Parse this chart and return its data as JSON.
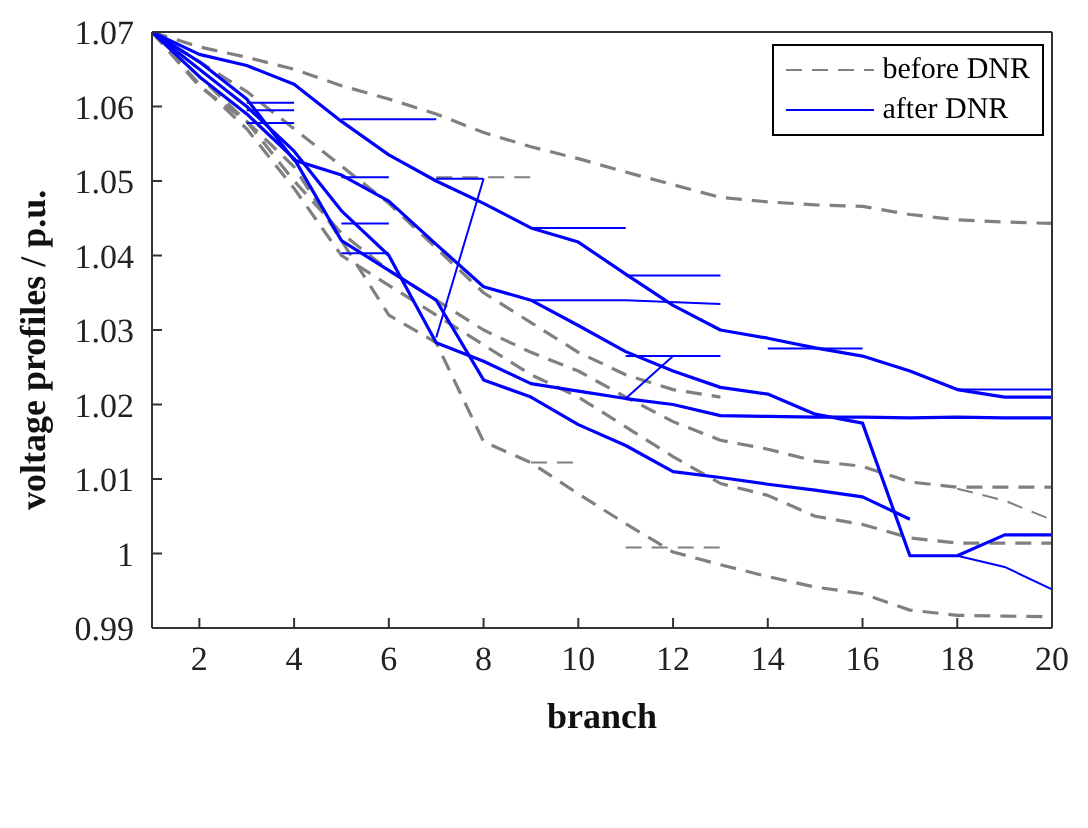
{
  "chart_data": {
    "type": "line",
    "xlabel": "branch",
    "ylabel": "voltage profiles / p.u.",
    "xlim": [
      1,
      20
    ],
    "xticks": [
      2,
      4,
      6,
      8,
      10,
      12,
      14,
      16,
      18,
      20
    ],
    "ylim": [
      0.99,
      1.07
    ],
    "yticks": [
      0.99,
      1,
      1.01,
      1.02,
      1.03,
      1.04,
      1.05,
      1.06,
      1.07
    ],
    "legend": "top right",
    "marker": "none",
    "series": [
      {
        "name": "before DNR",
        "color": "#808080",
        "line_style": "dashed",
        "x": [
          1,
          2,
          3,
          4,
          5,
          6,
          7,
          8,
          9,
          10,
          11,
          12,
          13,
          14,
          15,
          16,
          17,
          18,
          19,
          20
        ],
        "values": [
          1.07,
          1.068,
          1.0666,
          1.065,
          1.0628,
          1.061,
          1.059,
          1.0565,
          1.0546,
          1.053,
          1.0512,
          1.0495,
          1.0478,
          1.0472,
          1.0468,
          1.0466,
          1.0455,
          1.0448,
          1.0445,
          1.0443
        ]
      },
      {
        "color": "#808080",
        "line_style": "dashed",
        "x": [
          1,
          2,
          3,
          4,
          5,
          6,
          7,
          8,
          9,
          10,
          11,
          12,
          13,
          14,
          15,
          16,
          17,
          18,
          19,
          20
        ],
        "values": [
          1.07,
          1.0627,
          1.058,
          1.0519,
          1.042,
          1.032,
          1.0283,
          1.015,
          1.0122,
          1.008,
          1.004,
          1.0002,
          0.9985,
          0.9969,
          0.9955,
          0.9946,
          0.9924,
          0.9917,
          0.9916,
          0.9915
        ]
      },
      {
        "color": "#808080",
        "line_style": "dashed",
        "x": [
          1,
          2,
          3,
          4,
          5,
          6,
          7,
          8,
          9,
          10,
          11,
          12,
          13,
          14,
          15,
          16,
          17,
          18,
          19,
          20
        ],
        "values": [
          1.07,
          1.064,
          1.058,
          1.05,
          1.043,
          1.038,
          1.034,
          1.03,
          1.027,
          1.0245,
          1.021,
          1.0177,
          1.0152,
          1.014,
          1.0124,
          1.0117,
          1.0096,
          1.0089,
          1.0089,
          1.0089
        ]
      },
      {
        "color": "#808080",
        "line_style": "dashed",
        "x": [
          1,
          2,
          3,
          4,
          5,
          6,
          7,
          8,
          9,
          10,
          11,
          12,
          13,
          14,
          15,
          16,
          17,
          18,
          19,
          20
        ],
        "values": [
          1.07,
          1.063,
          1.057,
          1.049,
          1.04,
          1.036,
          1.032,
          1.028,
          1.024,
          1.021,
          1.017,
          1.013,
          1.0094,
          1.0078,
          1.005,
          1.0039,
          1.0021,
          1.0014,
          1.0014,
          1.0014
        ]
      },
      {
        "color": "#808080",
        "line_style": "dashed",
        "x": [
          1,
          2,
          3,
          4,
          5,
          6,
          7,
          8,
          9,
          10,
          11,
          12,
          13
        ],
        "values": [
          1.07,
          1.066,
          1.062,
          1.057,
          1.052,
          1.047,
          1.041,
          1.035,
          1.031,
          1.027,
          1.024,
          1.022,
          1.021
        ]
      },
      {
        "color": "#808080",
        "line_style": "dashed",
        "x": [
          18,
          19,
          20
        ],
        "values": [
          1.0087,
          1.0071,
          1.0045
        ]
      },
      {
        "color": "#808080",
        "line_style": "dashed",
        "x": [
          9,
          10
        ],
        "values": [
          1.0122,
          1.0122
        ]
      },
      {
        "color": "#808080",
        "line_style": "dashed",
        "x": [
          11,
          13
        ],
        "values": [
          1.0008,
          1.0008
        ]
      },
      {
        "color": "#808080",
        "line_style": "dashed",
        "x": [
          7,
          9
        ],
        "values": [
          1.0505,
          1.0505
        ]
      },
      {
        "name": "after DNR",
        "color": "#0000ff",
        "line_style": "solid",
        "x": [
          1,
          2,
          3,
          4,
          5,
          6,
          7,
          8,
          9,
          10,
          11,
          12,
          13,
          14,
          15,
          16,
          17,
          18,
          19,
          20
        ],
        "values": [
          1.07,
          1.067,
          1.0655,
          1.063,
          1.058,
          1.0535,
          1.05,
          1.047,
          1.0437,
          1.0418,
          1.0375,
          1.0333,
          1.03,
          1.0289,
          1.0276,
          1.0265,
          1.0245,
          1.022,
          1.021,
          1.021
        ]
      },
      {
        "color": "#0000ff",
        "line_style": "solid",
        "x": [
          1,
          2,
          3,
          4,
          5,
          6,
          7,
          8,
          9,
          10,
          11,
          12,
          13,
          14,
          15,
          16,
          17,
          18,
          19,
          20
        ],
        "values": [
          1.07,
          1.066,
          1.061,
          1.0528,
          1.0508,
          1.0473,
          1.0415,
          1.0358,
          1.034,
          1.0306,
          1.0271,
          1.0245,
          1.0223,
          1.0214,
          1.0187,
          1.0175,
          0.9997,
          0.9997,
          1.0025,
          1.0025
        ]
      },
      {
        "color": "#0000ff",
        "line_style": "solid",
        "x": [
          1,
          2,
          3,
          4,
          5,
          6,
          7,
          8,
          9,
          10,
          11,
          12,
          13,
          14,
          15,
          16,
          17,
          18,
          19,
          20
        ],
        "values": [
          1.07,
          1.065,
          1.06,
          1.054,
          1.046,
          1.04,
          1.0283,
          1.0258,
          1.0228,
          1.0218,
          1.0208,
          1.02,
          1.0185,
          1.0184,
          1.0183,
          1.0183,
          1.0182,
          1.0183,
          1.0182,
          1.0182
        ]
      },
      {
        "color": "#0000ff",
        "line_style": "solid",
        "x": [
          1,
          2,
          3,
          4,
          5,
          6,
          7,
          8,
          9,
          10,
          11,
          12,
          13,
          14,
          15,
          16,
          17
        ],
        "values": [
          1.07,
          1.064,
          1.059,
          1.053,
          1.042,
          1.038,
          1.034,
          1.0233,
          1.021,
          1.0173,
          1.0145,
          1.011,
          1.0102,
          1.0093,
          1.0085,
          1.0076,
          1.0046
        ]
      },
      {
        "color": "#0000ff",
        "line_style": "solid",
        "x": [
          18,
          19,
          20
        ],
        "values": [
          0.9997,
          0.9982,
          0.9952
        ]
      },
      {
        "color": "#0000ff",
        "line_style": "solid",
        "x": [
          18,
          20
        ],
        "values": [
          1.022,
          1.022
        ]
      },
      {
        "color": "#0000ff",
        "line_style": "solid",
        "x": [
          3,
          4
        ],
        "values": [
          1.0605,
          1.0605
        ]
      },
      {
        "color": "#0000ff",
        "line_style": "solid",
        "x": [
          3,
          4
        ],
        "values": [
          1.0595,
          1.0595
        ]
      },
      {
        "color": "#0000ff",
        "line_style": "solid",
        "x": [
          3,
          4
        ],
        "values": [
          1.0578,
          1.0578
        ]
      },
      {
        "color": "#0000ff",
        "line_style": "solid",
        "x": [
          5,
          7
        ],
        "values": [
          1.0583,
          1.0583
        ]
      },
      {
        "color": "#0000ff",
        "line_style": "solid",
        "x": [
          5,
          6
        ],
        "values": [
          1.0505,
          1.0505
        ]
      },
      {
        "color": "#0000ff",
        "line_style": "solid",
        "x": [
          5,
          6
        ],
        "values": [
          1.0443,
          1.0443
        ]
      },
      {
        "color": "#0000ff",
        "line_style": "solid",
        "x": [
          5,
          6
        ],
        "values": [
          1.0403,
          1.0403
        ]
      },
      {
        "color": "#0000ff",
        "line_style": "solid",
        "x": [
          7,
          8
        ],
        "values": [
          1.0503,
          1.0503
        ]
      },
      {
        "color": "#0000ff",
        "line_style": "solid",
        "x": [
          9,
          11
        ],
        "values": [
          1.0437,
          1.0437
        ]
      },
      {
        "color": "#0000ff",
        "line_style": "solid",
        "x": [
          9,
          11,
          13
        ],
        "values": [
          1.034,
          1.034,
          1.0335
        ]
      },
      {
        "color": "#0000ff",
        "line_style": "solid",
        "x": [
          11,
          13
        ],
        "values": [
          1.0373,
          1.0373
        ]
      },
      {
        "color": "#0000ff",
        "line_style": "solid",
        "x": [
          11,
          13
        ],
        "values": [
          1.0265,
          1.0265
        ]
      },
      {
        "color": "#0000ff",
        "line_style": "solid",
        "x": [
          14,
          16
        ],
        "values": [
          1.0275,
          1.0275
        ]
      },
      {
        "color": "#0000ff",
        "line_style": "solid",
        "x": [
          7,
          8
        ],
        "values": [
          1.029,
          1.0503
        ]
      },
      {
        "color": "#0000ff",
        "line_style": "solid",
        "x": [
          11,
          12
        ],
        "values": [
          1.0208,
          1.0265
        ]
      }
    ]
  }
}
